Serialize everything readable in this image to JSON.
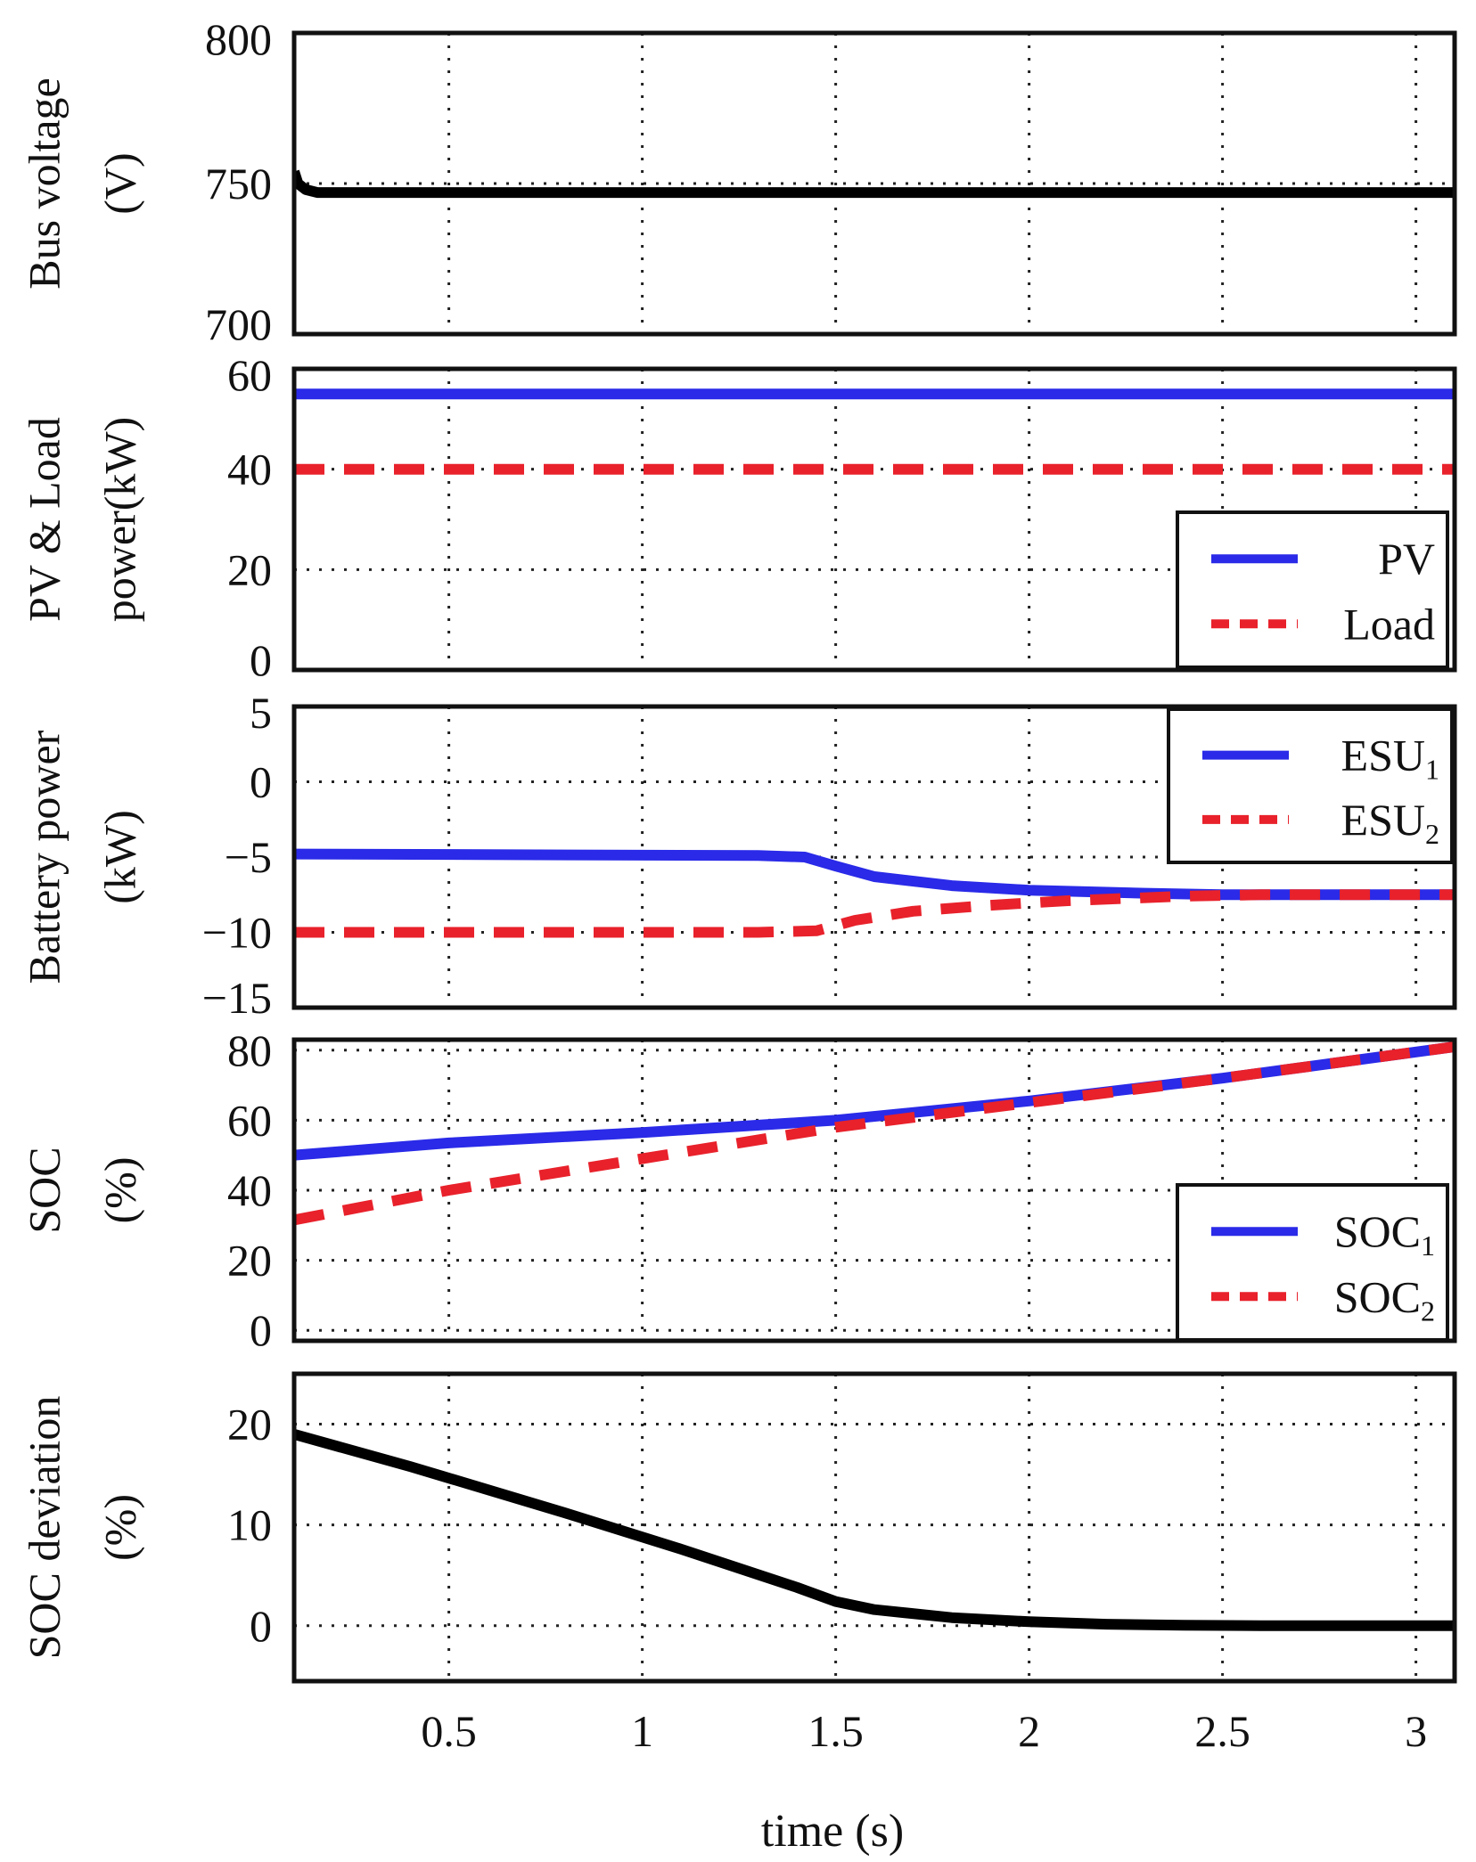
{
  "chart_data": [
    {
      "type": "line",
      "id": "bus",
      "ylabel": [
        "Bus voltage",
        "(V)"
      ],
      "xlim": [
        0.1,
        3.1
      ],
      "ylim": [
        700,
        800
      ],
      "yticks": [
        700,
        750,
        800
      ],
      "ytick_labels": [
        "700",
        "750",
        "800"
      ],
      "legend": null,
      "series": [
        {
          "name": "Bus voltage",
          "color": "#000000",
          "style": "solid",
          "x": [
            0.1,
            0.11,
            0.13,
            0.16,
            0.2,
            0.3,
            0.5,
            1.0,
            1.5,
            2.0,
            2.5,
            3.1
          ],
          "y": [
            754,
            750,
            748,
            747,
            747,
            747,
            747,
            747,
            747,
            747,
            747,
            747
          ]
        }
      ]
    },
    {
      "type": "line",
      "id": "pv",
      "ylabel": [
        "PV & Load",
        "power(kW)"
      ],
      "xlim": [
        0.1,
        3.1
      ],
      "ylim": [
        0,
        60
      ],
      "yticks": [
        0,
        20,
        40,
        60
      ],
      "ytick_labels": [
        "0",
        "20",
        "40",
        "60"
      ],
      "legend": {
        "position": "bottom-right",
        "entries": [
          "PV",
          "Load"
        ]
      },
      "series": [
        {
          "name": "PV",
          "color": "#2a2ae8",
          "style": "solid",
          "x": [
            0.1,
            3.1
          ],
          "y": [
            55,
            55
          ]
        },
        {
          "name": "Load",
          "color": "#e8212b",
          "style": "dashed",
          "x": [
            0.1,
            3.1
          ],
          "y": [
            40,
            40
          ]
        }
      ]
    },
    {
      "type": "line",
      "id": "bat",
      "ylabel": [
        "Battery power",
        "(kW)"
      ],
      "xlim": [
        0.1,
        3.1
      ],
      "ylim": [
        -15,
        5
      ],
      "yticks": [
        -15,
        -10,
        -5,
        0,
        5
      ],
      "ytick_labels": [
        "−15",
        "−10",
        "−5",
        "0",
        "5"
      ],
      "legend": {
        "position": "top-right",
        "entries": [
          "ESU",
          "ESU"
        ],
        "subscripts": [
          "1",
          "2"
        ]
      },
      "series": [
        {
          "name": "ESU1",
          "color": "#2a2ae8",
          "style": "solid",
          "x": [
            0.1,
            1.3,
            1.42,
            1.5,
            1.6,
            1.8,
            2.0,
            2.3,
            2.5,
            3.1
          ],
          "y": [
            -4.8,
            -4.9,
            -5.0,
            -5.6,
            -6.3,
            -6.9,
            -7.2,
            -7.4,
            -7.5,
            -7.5
          ]
        },
        {
          "name": "ESU2",
          "color": "#e8212b",
          "style": "dashed",
          "x": [
            0.1,
            1.3,
            1.45,
            1.55,
            1.7,
            1.9,
            2.1,
            2.4,
            2.6,
            3.1
          ],
          "y": [
            -10.0,
            -10.0,
            -9.9,
            -9.2,
            -8.6,
            -8.2,
            -7.9,
            -7.6,
            -7.5,
            -7.5
          ]
        }
      ]
    },
    {
      "type": "line",
      "id": "soc",
      "ylabel": [
        "SOC",
        "(%)"
      ],
      "xlim": [
        0.1,
        3.1
      ],
      "ylim": [
        -3,
        83
      ],
      "yticks": [
        0,
        20,
        40,
        60,
        80
      ],
      "ytick_labels": [
        "0",
        "20",
        "40",
        "60",
        "80"
      ],
      "legend": {
        "position": "bottom-right",
        "entries": [
          "SOC",
          "SOC"
        ],
        "subscripts": [
          "1",
          "2"
        ]
      },
      "series": [
        {
          "name": "SOC1",
          "color": "#2a2ae8",
          "style": "solid",
          "x": [
            0.1,
            0.5,
            1.0,
            1.5,
            2.0,
            2.5,
            3.1
          ],
          "y": [
            50,
            53.5,
            56.5,
            60,
            65.5,
            72,
            81
          ]
        },
        {
          "name": "SOC2",
          "color": "#e8212b",
          "style": "dashed",
          "x": [
            0.1,
            0.5,
            1.0,
            1.5,
            2.0,
            2.5,
            3.1
          ],
          "y": [
            31.5,
            40,
            49,
            58,
            65,
            72,
            81
          ]
        }
      ]
    },
    {
      "type": "line",
      "id": "dev",
      "ylabel": [
        "SOC deviation",
        "(%)"
      ],
      "xlim": [
        0.1,
        3.1
      ],
      "ylim": [
        -5.5,
        25
      ],
      "yticks": [
        0,
        10,
        20
      ],
      "ytick_labels": [
        "0",
        "10",
        "20"
      ],
      "legend": null,
      "series": [
        {
          "name": "SOC deviation",
          "color": "#000000",
          "style": "solid",
          "x": [
            0.1,
            0.4,
            0.8,
            1.1,
            1.4,
            1.5,
            1.6,
            1.8,
            2.0,
            2.2,
            2.4,
            2.6,
            3.1
          ],
          "y": [
            19,
            15.8,
            11.2,
            7.6,
            3.8,
            2.4,
            1.6,
            0.8,
            0.4,
            0.15,
            0.05,
            0,
            0
          ]
        }
      ]
    }
  ],
  "xaxis": {
    "label": "time (s)",
    "ticks": [
      0.5,
      1,
      1.5,
      2,
      2.5,
      3
    ],
    "tick_labels": [
      "0.5",
      "1",
      "1.5",
      "2",
      "2.5",
      "3"
    ]
  }
}
